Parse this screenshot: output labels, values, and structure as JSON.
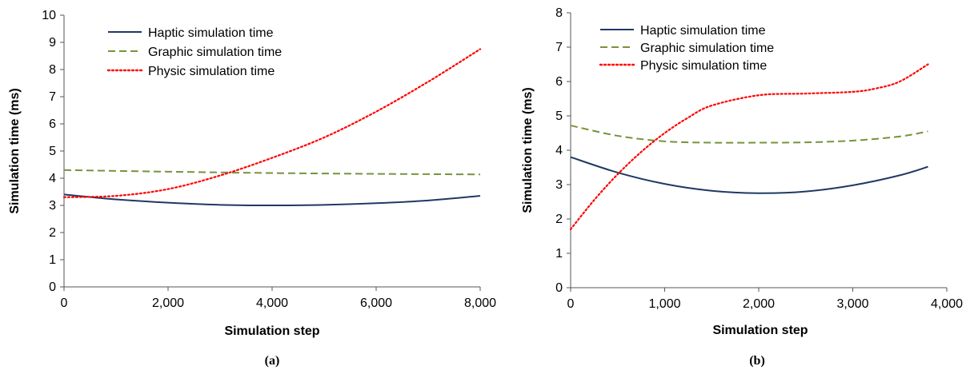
{
  "chart_data": [
    {
      "type": "line",
      "caption": "(a)",
      "xlabel": "Simulation step",
      "ylabel": "Simulation time (ms)",
      "xlim": [
        0,
        8000
      ],
      "ylim": [
        0,
        10
      ],
      "xticks": [
        0,
        2000,
        4000,
        6000,
        8000
      ],
      "xtick_labels": [
        "0",
        "2,000",
        "4,000",
        "6,000",
        "8,000"
      ],
      "yticks": [
        0,
        1,
        2,
        3,
        4,
        5,
        6,
        7,
        8,
        9,
        10
      ],
      "ytick_labels": [
        "0",
        "1",
        "2",
        "3",
        "4",
        "5",
        "6",
        "7",
        "8",
        "9",
        "10"
      ],
      "legend_position": "top-left",
      "series": [
        {
          "name": "Haptic simulation time",
          "color": "#1f3864",
          "style": "solid",
          "x": [
            0,
            1000,
            2000,
            3000,
            4000,
            5000,
            6000,
            7000,
            8000
          ],
          "y": [
            3.4,
            3.22,
            3.1,
            3.02,
            3.0,
            3.02,
            3.08,
            3.18,
            3.35
          ]
        },
        {
          "name": "Graphic simulation time",
          "color": "#77933c",
          "style": "dashed",
          "x": [
            0,
            2000,
            4000,
            6000,
            8000
          ],
          "y": [
            4.3,
            4.24,
            4.19,
            4.16,
            4.14
          ]
        },
        {
          "name": "Physic simulation time",
          "color": "#ff0000",
          "style": "dotted",
          "x": [
            0,
            1000,
            2000,
            3000,
            4000,
            5000,
            6000,
            7000,
            8000
          ],
          "y": [
            3.3,
            3.35,
            3.6,
            4.1,
            4.75,
            5.5,
            6.45,
            7.55,
            8.75
          ]
        }
      ]
    },
    {
      "type": "line",
      "caption": "(b)",
      "xlabel": "Simulation step",
      "ylabel": "Simulation time (ms)",
      "xlim": [
        0,
        4000
      ],
      "ylim": [
        0,
        8
      ],
      "xticks": [
        0,
        1000,
        2000,
        3000,
        4000
      ],
      "xtick_labels": [
        "0",
        "1,000",
        "2,000",
        "3,000",
        "4,000"
      ],
      "yticks": [
        0,
        1,
        2,
        3,
        4,
        5,
        6,
        7,
        8
      ],
      "ytick_labels": [
        "0",
        "1",
        "2",
        "3",
        "4",
        "5",
        "6",
        "7",
        "8"
      ],
      "legend_position": "top-left",
      "series": [
        {
          "name": "Haptic simulation time",
          "color": "#1f3864",
          "style": "solid",
          "x": [
            0,
            500,
            1000,
            1500,
            2000,
            2500,
            3000,
            3500,
            3800
          ],
          "y": [
            3.8,
            3.35,
            3.02,
            2.82,
            2.75,
            2.8,
            2.98,
            3.27,
            3.52
          ]
        },
        {
          "name": "Graphic simulation time",
          "color": "#77933c",
          "style": "dashed",
          "x": [
            0,
            500,
            1000,
            1500,
            2000,
            2500,
            3000,
            3500,
            3800
          ],
          "y": [
            4.72,
            4.42,
            4.26,
            4.22,
            4.22,
            4.23,
            4.28,
            4.4,
            4.55
          ]
        },
        {
          "name": "Physic simulation time",
          "color": "#ff0000",
          "style": "dotted",
          "x": [
            0,
            250,
            500,
            750,
            1000,
            1250,
            1500,
            2000,
            2500,
            3000,
            3250,
            3500,
            3800
          ],
          "y": [
            1.7,
            2.55,
            3.3,
            3.95,
            4.5,
            4.95,
            5.3,
            5.6,
            5.65,
            5.7,
            5.8,
            6.0,
            6.5
          ]
        }
      ]
    }
  ]
}
